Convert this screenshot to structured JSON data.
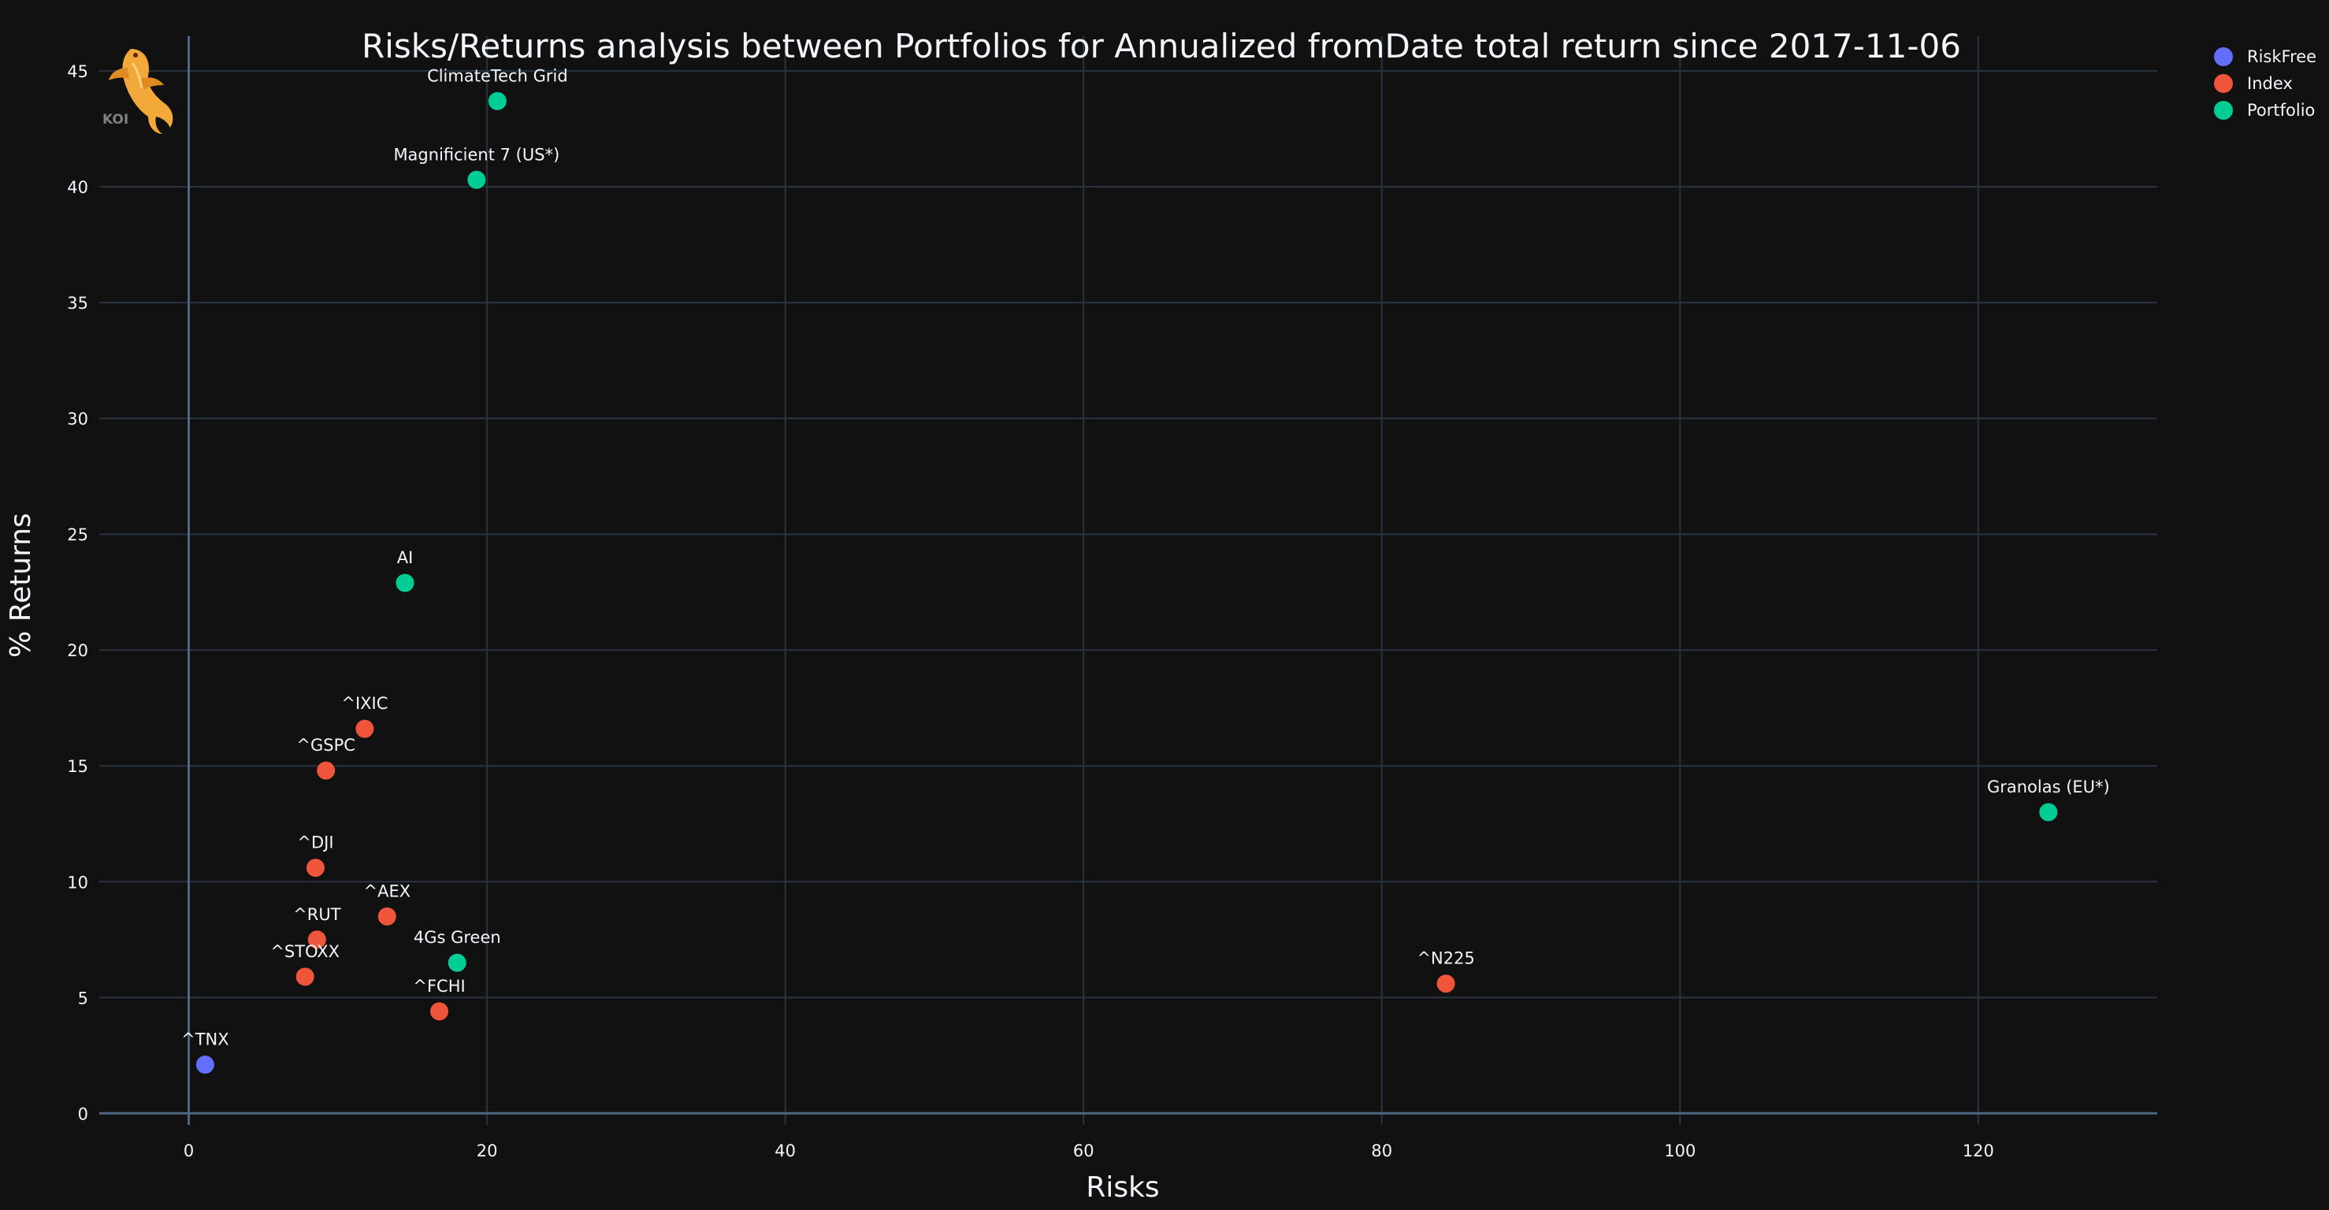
{
  "colors": {
    "background": "#111111",
    "grid": "#283442",
    "text": "#f2f5fa",
    "RiskFree": "#636efa",
    "Index": "#ef553b",
    "Portfolio": "#00cc96"
  },
  "logo": {
    "text": "KOI",
    "icon": "koi-fish-icon"
  },
  "chart_data": {
    "type": "scatter",
    "title": "Risks/Returns analysis between Portfolios for Annualized fromDate total return since 2017-11-06",
    "xlabel": "Risks",
    "ylabel": "% Returns",
    "xlim": [
      -6,
      132
    ],
    "ylim": [
      -0.5,
      46.5
    ],
    "xticks": [
      0,
      20,
      40,
      60,
      80,
      100,
      120
    ],
    "yticks": [
      0,
      5,
      10,
      15,
      20,
      25,
      30,
      35,
      40,
      45
    ],
    "grid": true,
    "legend_position": "top-right",
    "series": [
      {
        "name": "RiskFree",
        "points": [
          {
            "label": "^TNX",
            "x": 1.1,
            "y": 2.1
          }
        ]
      },
      {
        "name": "Index",
        "points": [
          {
            "label": "^IXIC",
            "x": 11.8,
            "y": 16.6
          },
          {
            "label": "^GSPC",
            "x": 9.2,
            "y": 14.8
          },
          {
            "label": "^DJI",
            "x": 8.5,
            "y": 10.6
          },
          {
            "label": "^AEX",
            "x": 13.3,
            "y": 8.5
          },
          {
            "label": "^RUT",
            "x": 8.6,
            "y": 7.5
          },
          {
            "label": "^STOXX",
            "x": 7.8,
            "y": 5.9
          },
          {
            "label": "^FCHI",
            "x": 16.8,
            "y": 4.4
          },
          {
            "label": "^N225",
            "x": 84.3,
            "y": 5.6
          }
        ]
      },
      {
        "name": "Portfolio",
        "points": [
          {
            "label": "ClimateTech Grid",
            "x": 20.7,
            "y": 43.7
          },
          {
            "label": "Magnificient 7 (US*)",
            "x": 19.3,
            "y": 40.3
          },
          {
            "label": "AI",
            "x": 14.5,
            "y": 22.9
          },
          {
            "label": "4Gs Green",
            "x": 18.0,
            "y": 6.5
          },
          {
            "label": "Granolas (EU*)",
            "x": 124.7,
            "y": 13.0
          }
        ]
      }
    ]
  }
}
